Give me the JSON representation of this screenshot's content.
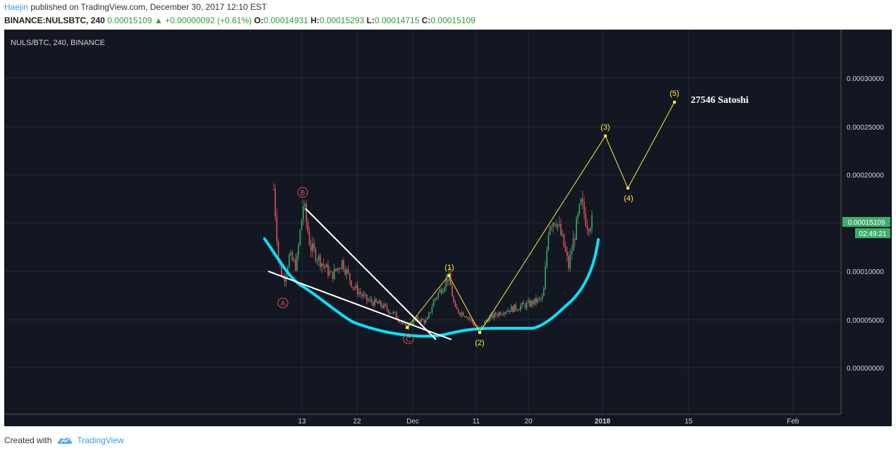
{
  "header": {
    "author": "Haejin",
    "published_text": "published on TradingView.com, December 30, 2017 12:10 EST"
  },
  "ohlc": {
    "symbol": "BINANCE:NULSBTC, 240",
    "last": "0.00015109",
    "change": "+0.00000092 (+0.61%)",
    "open_label": "O:",
    "open": "0.00014931",
    "high_label": "H:",
    "high": "0.00015293",
    "low_label": "L:",
    "low": "0.00014715",
    "close_label": "C:",
    "close": "0.00015109"
  },
  "chart": {
    "legend": "NULS/BTC, 240, BINANCE",
    "price_label": "0.00015109",
    "countdown": "02:49:21",
    "target_annotation": "27546 Satoshi",
    "y_ticks": [
      "0.00030000",
      "0.00025000",
      "0.00020000",
      "0.00010000",
      "0.00005000",
      "0.00000000"
    ],
    "x_ticks": [
      "13",
      "22",
      "Dec",
      "11",
      "20",
      "2018",
      "15",
      "Feb"
    ],
    "wave_abc": [
      "A",
      "B",
      "C"
    ],
    "wave_impulse": [
      "(1)",
      "(2)",
      "(3)",
      "(4)",
      "(5)"
    ],
    "colors": {
      "background": "#131722",
      "grid": "#262a35",
      "up_candle": "#3aa86a",
      "down_candle": "#e0525a",
      "ma_line": "#00e5ff",
      "wave_line": "#ffeb3b",
      "trend_line": "#ffffff",
      "abc_label": "#e0525a",
      "price_badge": "#3fae6b"
    }
  },
  "footer": {
    "created_with": "Created with",
    "brand": "TradingView"
  }
}
